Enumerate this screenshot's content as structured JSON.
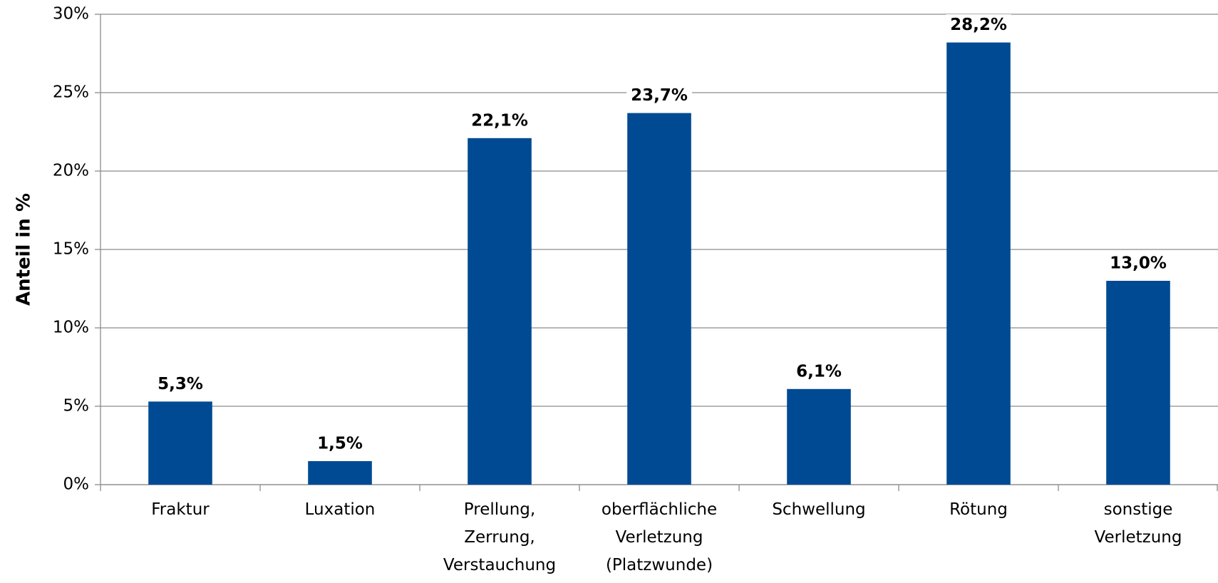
{
  "chart_data": {
    "type": "bar",
    "y_label": "Anteil in %",
    "categories": [
      "Fraktur",
      "Luxation",
      "Prellung,\nZerrung,\nVerstauchung",
      "oberflächliche\nVerletzung\n(Platzwunde)",
      "Schwellung",
      "Rötung",
      "sonstige\nVerletzung"
    ],
    "values": [
      5.3,
      1.5,
      22.1,
      23.7,
      6.1,
      28.2,
      13.0
    ],
    "value_labels": [
      "5,3%",
      "1,5%",
      "22,1%",
      "23,7%",
      "6,1%",
      "28,2%",
      "13,0%"
    ],
    "color": "#004a93",
    "ylim": [
      0,
      30
    ],
    "yticks": [
      {
        "value": 0,
        "label": "0%"
      },
      {
        "value": 5,
        "label": "5%"
      },
      {
        "value": 10,
        "label": "10%"
      },
      {
        "value": 15,
        "label": "15%"
      },
      {
        "value": 20,
        "label": "20%"
      },
      {
        "value": 25,
        "label": "25%"
      },
      {
        "value": 30,
        "label": "30%"
      }
    ],
    "grid": true
  }
}
